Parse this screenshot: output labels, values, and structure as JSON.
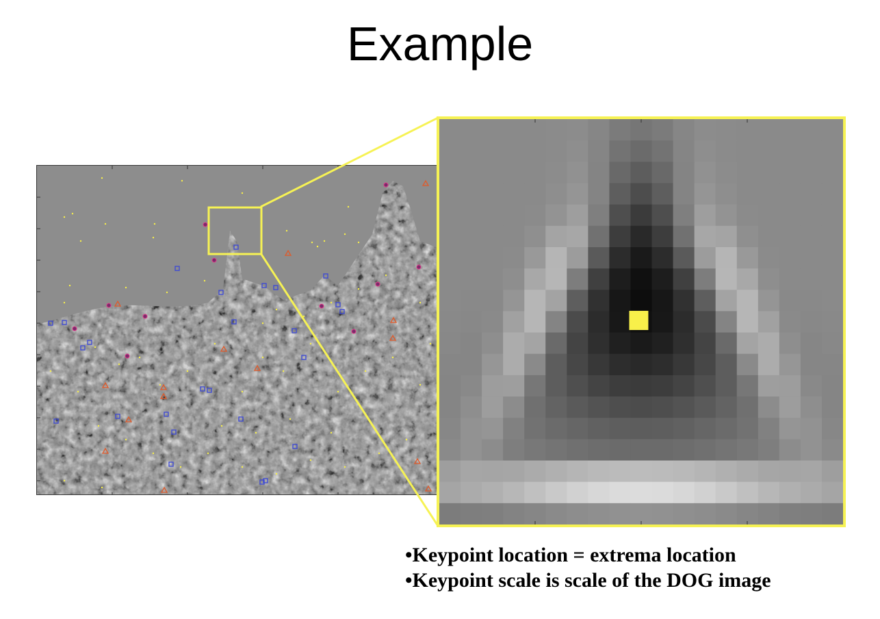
{
  "slide": {
    "title": "Example",
    "bullets": [
      "•Keypoint location = extrema location",
      "•Keypoint scale is scale of the DOG image"
    ]
  },
  "colors": {
    "highlight": "#f6f254",
    "keypoint_marker": "#f8f04a",
    "square_marker": "#3b47d6",
    "triangle_marker": "#e05a2a"
  }
}
